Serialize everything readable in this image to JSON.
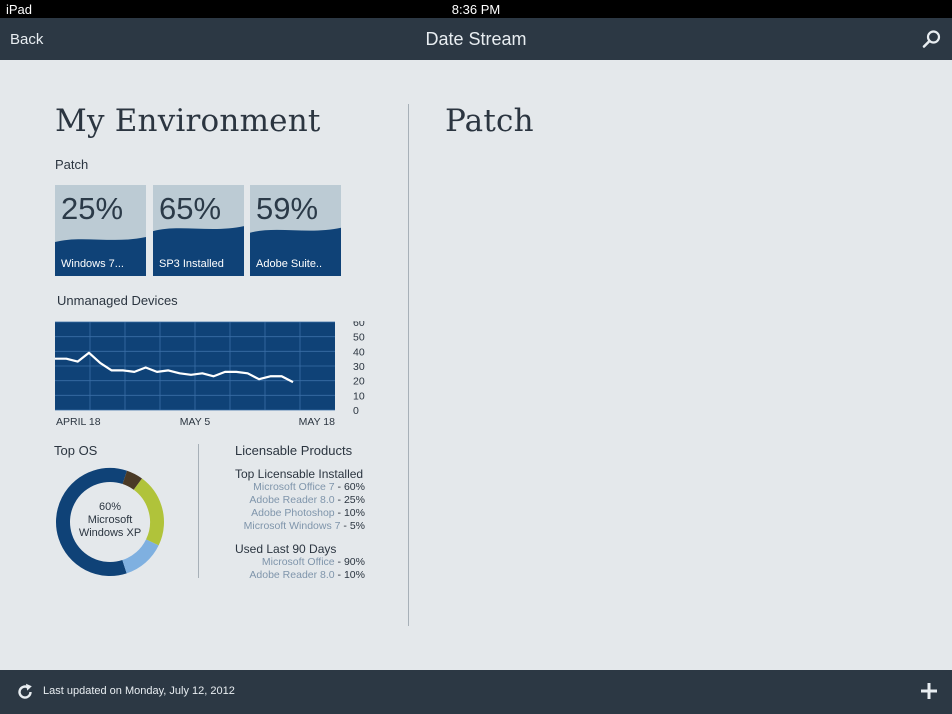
{
  "status_bar": {
    "device": "iPad",
    "time": "8:36 PM"
  },
  "nav": {
    "back_label": "Back",
    "title": "Date Stream",
    "search_icon": "search-icon"
  },
  "left": {
    "title": "My Environment",
    "patch_label": "Patch",
    "tiles": [
      {
        "percent": "25%",
        "name": "Windows 7...",
        "level": 0.25
      },
      {
        "percent": "65%",
        "name": "SP3 Installed",
        "level": 0.65
      },
      {
        "percent": "59%",
        "name": "Adobe Suite..",
        "level": 0.59
      }
    ],
    "unmanaged_label": "Unmanaged Devices",
    "top_os_label": "Top OS",
    "licensable_label": "Licensable Products",
    "donut_center": {
      "percent": "60%",
      "line1": "Microsoft",
      "line2": "Windows XP"
    },
    "top_installed_label": "Top Licensable Installed",
    "top_installed": [
      {
        "name": "Microsoft Office 7",
        "percent": " - 60%"
      },
      {
        "name": "Adobe Reader 8.0",
        "percent": " - 25%"
      },
      {
        "name": "Adobe Photoshop",
        "percent": " - 10%"
      },
      {
        "name": "Microsoft Windows 7",
        "percent": " - 5%"
      }
    ],
    "used_label": "Used Last 90 Days",
    "used": [
      {
        "name": "Microsoft Office",
        "percent": " - 90%"
      },
      {
        "name": "Adobe Reader 8.0",
        "percent": " - 10%"
      }
    ]
  },
  "right": {
    "title": "Patch"
  },
  "footer": {
    "updated": "Last updated on Monday, July 12, 2012",
    "refresh_icon": "refresh-icon",
    "add_icon": "plus-icon"
  },
  "colors": {
    "nav": "#2c3844",
    "background": "#e4e8eb",
    "tile_light": "#bccbd4",
    "tile_dark": "#0f4277",
    "chart_bg": "#0f4277",
    "donut_main": "#0f4277",
    "donut_green": "#b0c33a",
    "donut_lightblue": "#7fb0e0",
    "donut_brown": "#4a3a26"
  },
  "chart_data": [
    {
      "type": "line",
      "title": "Unmanaged Devices",
      "x_tick_labels": [
        "APRIL 18",
        "MAY 5",
        "MAY 18"
      ],
      "y_ticks": [
        0,
        10,
        20,
        30,
        40,
        50,
        60
      ],
      "ylim": [
        0,
        60
      ],
      "grid": true,
      "series": [
        {
          "values": [
            35,
            35,
            33,
            39,
            32,
            27,
            27,
            26,
            29,
            26,
            27,
            25,
            24,
            25,
            23,
            26,
            26,
            25,
            21,
            23,
            23,
            19
          ]
        }
      ]
    },
    {
      "type": "pie",
      "title": "Top OS",
      "slices": [
        {
          "label": "Microsoft Windows XP",
          "value": 60,
          "color": "#0f4277"
        },
        {
          "value": 5,
          "color": "#4a3a26"
        },
        {
          "value": 22,
          "color": "#b0c33a"
        },
        {
          "value": 13,
          "color": "#7fb0e0"
        }
      ]
    }
  ]
}
